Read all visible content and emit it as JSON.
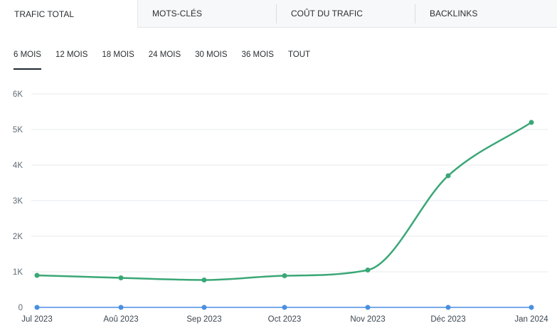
{
  "tabs": [
    {
      "label": "TRAFIC TOTAL",
      "active": true
    },
    {
      "label": "MOTS-CLÉS",
      "active": false
    },
    {
      "label": "COÛT DU TRAFIC",
      "active": false
    },
    {
      "label": "BACKLINKS",
      "active": false
    }
  ],
  "periods": [
    {
      "label": "6 MOIS",
      "active": true
    },
    {
      "label": "12 MOIS",
      "active": false
    },
    {
      "label": "18 MOIS",
      "active": false
    },
    {
      "label": "24 MOIS",
      "active": false
    },
    {
      "label": "30 MOIS",
      "active": false
    },
    {
      "label": "36 MOIS",
      "active": false
    },
    {
      "label": "TOUT",
      "active": false
    }
  ],
  "chart_data": {
    "type": "line",
    "x": [
      "Jul 2023",
      "Aoû 2023",
      "Sep 2023",
      "Oct 2023",
      "Nov 2023",
      "Déc 2023",
      "Jan 2024"
    ],
    "y_ticks": [
      "0",
      "1K",
      "2K",
      "3K",
      "4K",
      "5K",
      "6K"
    ],
    "ylim": [
      0,
      6000
    ],
    "grid": true,
    "series": [
      {
        "values": [
          900,
          830,
          770,
          890,
          1050,
          3700,
          5200
        ],
        "color": "#3aa776"
      },
      {
        "values": [
          0,
          0,
          0,
          0,
          0,
          0,
          0
        ],
        "color": "#4a8fe0"
      }
    ]
  }
}
